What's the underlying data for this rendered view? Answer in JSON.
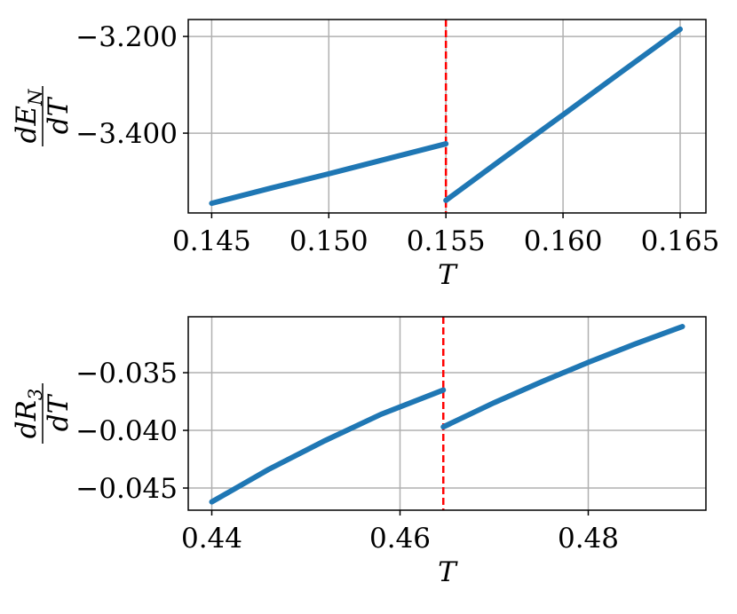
{
  "chart_data": [
    {
      "type": "line",
      "xlabel": "T",
      "ylabel_numerator": "dE",
      "ylabel_subscript": "N",
      "ylabel_denominator": "dT",
      "xlim": [
        0.144,
        0.1661
      ],
      "ylim": [
        -3.565,
        -3.165
      ],
      "xticks": [
        {
          "value": 0.145,
          "label": "0.145"
        },
        {
          "value": 0.15,
          "label": "0.150"
        },
        {
          "value": 0.155,
          "label": "0.155"
        },
        {
          "value": 0.16,
          "label": "0.160"
        },
        {
          "value": 0.165,
          "label": "0.165"
        }
      ],
      "yticks": [
        {
          "value": -3.4,
          "label": "−3.400"
        },
        {
          "value": -3.2,
          "label": "−3.200"
        }
      ],
      "grid": true,
      "vline": 0.155,
      "vline_color": "#ff0000",
      "series": [
        {
          "color": "#1f77b4",
          "x": [
            0.145,
            0.1475,
            0.15,
            0.1525,
            0.155
          ],
          "values": [
            -3.545,
            -3.514,
            -3.484,
            -3.453,
            -3.422
          ]
        },
        {
          "color": "#1f77b4",
          "x": [
            0.155,
            0.1575,
            0.16,
            0.1625,
            0.165
          ],
          "values": [
            -3.539,
            -3.45,
            -3.362,
            -3.273,
            -3.185
          ]
        }
      ]
    },
    {
      "type": "line",
      "xlabel": "T",
      "ylabel_numerator": "dR",
      "ylabel_subscript": "3",
      "ylabel_denominator": "dT",
      "xlim": [
        0.4375,
        0.4925
      ],
      "ylim": [
        -0.04692,
        -0.03015
      ],
      "xticks": [
        0.44,
        0.46,
        0.48
      ],
      "yticks": [
        {
          "value": -0.045,
          "label": "−0.045"
        },
        {
          "value": -0.04,
          "label": "−0.040"
        },
        {
          "value": -0.035,
          "label": "−0.035"
        }
      ],
      "grid": true,
      "vline": 0.4646,
      "vline_color": "#ff0000",
      "series": [
        {
          "color": "#1f77b4",
          "x": [
            0.44,
            0.446,
            0.452,
            0.458,
            0.4646
          ],
          "values": [
            -0.0462,
            -0.0434,
            -0.0409,
            -0.0386,
            -0.0365
          ]
        },
        {
          "color": "#1f77b4",
          "x": [
            0.4646,
            0.47,
            0.475,
            0.48,
            0.485,
            0.49
          ],
          "values": [
            -0.0397,
            -0.0376,
            -0.0358,
            -0.0341,
            -0.0325,
            -0.031
          ]
        }
      ]
    }
  ]
}
